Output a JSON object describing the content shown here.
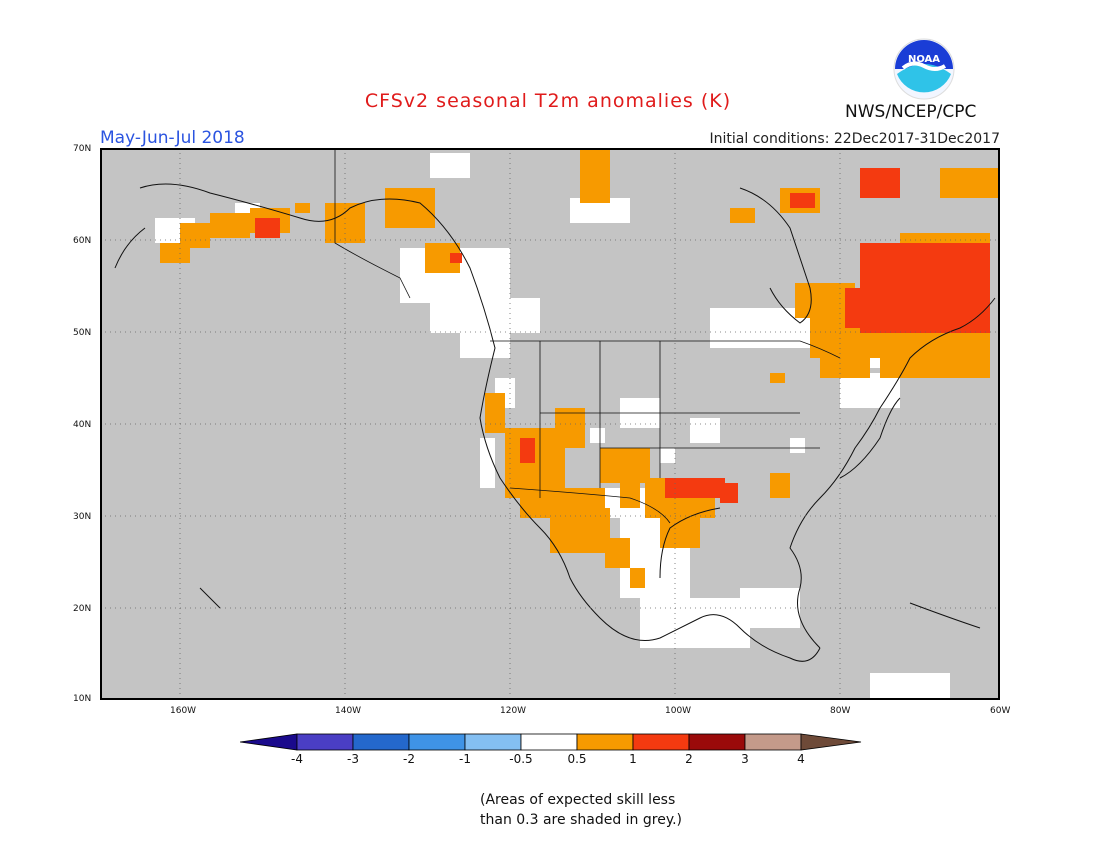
{
  "title": "CFSv2 seasonal T2m anomalies (K)",
  "period": "May-Jun-Jul 2018",
  "initial_conditions": "Initial conditions: 22Dec2017-31Dec2017",
  "agency": "NWS/NCEP/CPC",
  "logo_text": "NOAA",
  "lat_labels": [
    "70N",
    "60N",
    "50N",
    "40N",
    "30N",
    "20N",
    "10N"
  ],
  "lon_labels": [
    "160W",
    "140W",
    "120W",
    "100W",
    "80W",
    "60W"
  ],
  "colorbar": {
    "tick_labels": [
      "-4",
      "-3",
      "-2",
      "-1",
      "-0.5",
      "0.5",
      "1",
      "2",
      "3",
      "4"
    ],
    "colors": [
      "#1a0a8c",
      "#4a3ec4",
      "#2468cc",
      "#3f93e6",
      "#84bff2",
      "#ffffff",
      "#f79a00",
      "#f43a10",
      "#9a0a0a",
      "#c49a8a",
      "#6e4a38"
    ]
  },
  "skill_note_line1": "(Areas of expected skill less",
  "skill_note_line2": "than 0.3 are shaded in grey.)",
  "legend_colors": {
    "grey_low_skill": "#c4c4c4",
    "white_near_normal": "#ffffff",
    "orange_0_5_to_1": "#f79a00",
    "red_1_to_2": "#f43a10"
  }
}
